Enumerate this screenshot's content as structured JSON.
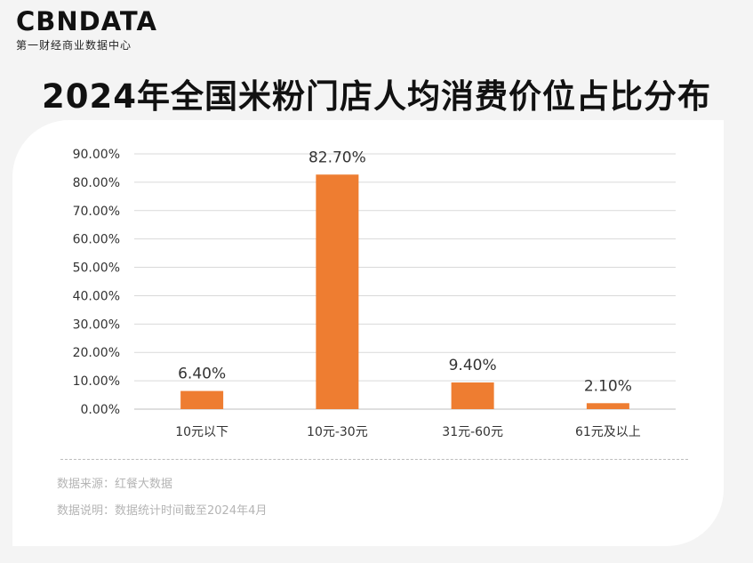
{
  "brand": {
    "logo": "CBNDATA",
    "tagline": "第一财经商业数据中心"
  },
  "title": "2024年全国米粉门店人均消费价位占比分布",
  "colors": {
    "bar": "#ee7d31",
    "grid": "#d9d9d9",
    "text": "#333333"
  },
  "notes": {
    "source": "数据来源：红餐大数据",
    "description": "数据说明：数据统计时间截至2024年4月"
  },
  "chart_data": {
    "type": "bar",
    "categories": [
      "10元以下",
      "10元-30元",
      "31元-60元",
      "61元及以上"
    ],
    "values": [
      6.4,
      82.7,
      9.4,
      2.1
    ],
    "data_labels": [
      "6.40%",
      "82.70%",
      "9.40%",
      "2.10%"
    ],
    "y_ticks": [
      "0.00%",
      "10.00%",
      "20.00%",
      "30.00%",
      "40.00%",
      "50.00%",
      "60.00%",
      "70.00%",
      "80.00%",
      "90.00%"
    ],
    "ylim": [
      0,
      90
    ],
    "grid": true,
    "legend": false
  }
}
